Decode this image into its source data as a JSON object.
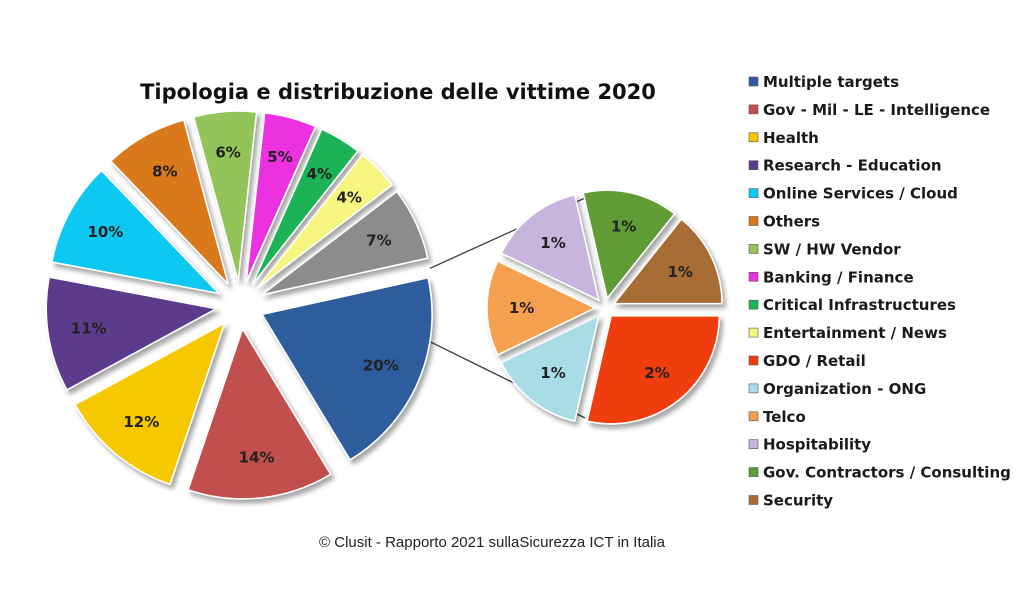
{
  "chart_data": {
    "type": "pie",
    "title": "Tipologia  e distribuzione delle vittime 2020",
    "footer": "© Clusit - Rapporto 2021 sullaSicurezza ICT in Italia",
    "legend_position": "right",
    "main_pie": [
      {
        "name": "Multiple targets",
        "value": 20,
        "label": "20%",
        "color": "#2e5d9e"
      },
      {
        "name": "Gov - Mil - LE - Intelligence",
        "value": 14,
        "label": "14%",
        "color": "#c0504d"
      },
      {
        "name": "Health",
        "value": 12,
        "label": "12%",
        "color": "#f7c800"
      },
      {
        "name": "Research - Education",
        "value": 11,
        "label": "11%",
        "color": "#5b3b8c"
      },
      {
        "name": "Online Services / Cloud",
        "value": 10,
        "label": "10%",
        "color": "#11c8f0"
      },
      {
        "name": "Others",
        "value": 8,
        "label": "8%",
        "color": "#d9791c"
      },
      {
        "name": "SW / HW Vendor",
        "value": 6,
        "label": "6%",
        "color": "#92c45a"
      },
      {
        "name": "Banking / Finance",
        "value": 5,
        "label": "5%",
        "color": "#ec30e0"
      },
      {
        "name": "Critical Infrastructures",
        "value": 4,
        "label": "4%",
        "color": "#1eb357"
      },
      {
        "name": "Entertainment / News",
        "value": 4,
        "label": "4%",
        "color": "#f6f580"
      },
      {
        "name": "",
        "value": 7,
        "label": "7%",
        "color": "#8c8c8c",
        "exploded_group": true
      }
    ],
    "secondary_pie": [
      {
        "name": "GDO / Retail",
        "value": 2,
        "label": "2%",
        "color": "#f03e0c"
      },
      {
        "name": "Organization - ONG",
        "value": 1,
        "label": "1%",
        "color": "#a8dde8"
      },
      {
        "name": "Telco",
        "value": 1,
        "label": "1%",
        "color": "#f5a050"
      },
      {
        "name": "Hospitability",
        "value": 1,
        "label": "1%",
        "color": "#c7b5dd"
      },
      {
        "name": "Gov. Contractors / Consulting",
        "value": 1,
        "label": "1%",
        "color": "#5e9c35"
      },
      {
        "name": "Security",
        "value": 1,
        "label": "1%",
        "color": "#a86d35"
      }
    ],
    "legend": [
      {
        "label": "Multiple targets",
        "color": "#2e5d9e"
      },
      {
        "label": "Gov - Mil - LE - Intelligence",
        "color": "#c0504d"
      },
      {
        "label": "Health",
        "color": "#f7c800"
      },
      {
        "label": "Research - Education",
        "color": "#5b3b8c"
      },
      {
        "label": "Online Services / Cloud",
        "color": "#11c8f0"
      },
      {
        "label": "Others",
        "color": "#d9791c"
      },
      {
        "label": "SW / HW Vendor",
        "color": "#92c45a"
      },
      {
        "label": "Banking / Finance",
        "color": "#ec30e0"
      },
      {
        "label": "Critical Infrastructures",
        "color": "#1eb357"
      },
      {
        "label": "Entertainment / News",
        "color": "#f6f580"
      },
      {
        "label": "GDO / Retail",
        "color": "#f03e0c"
      },
      {
        "label": "Organization - ONG",
        "color": "#a8dde8"
      },
      {
        "label": "Telco",
        "color": "#f5a050"
      },
      {
        "label": "Hospitability",
        "color": "#c7b5dd"
      },
      {
        "label": "Gov. Contractors / Consulting",
        "color": "#5e9c35"
      },
      {
        "label": "Security",
        "color": "#a86d35"
      }
    ]
  }
}
